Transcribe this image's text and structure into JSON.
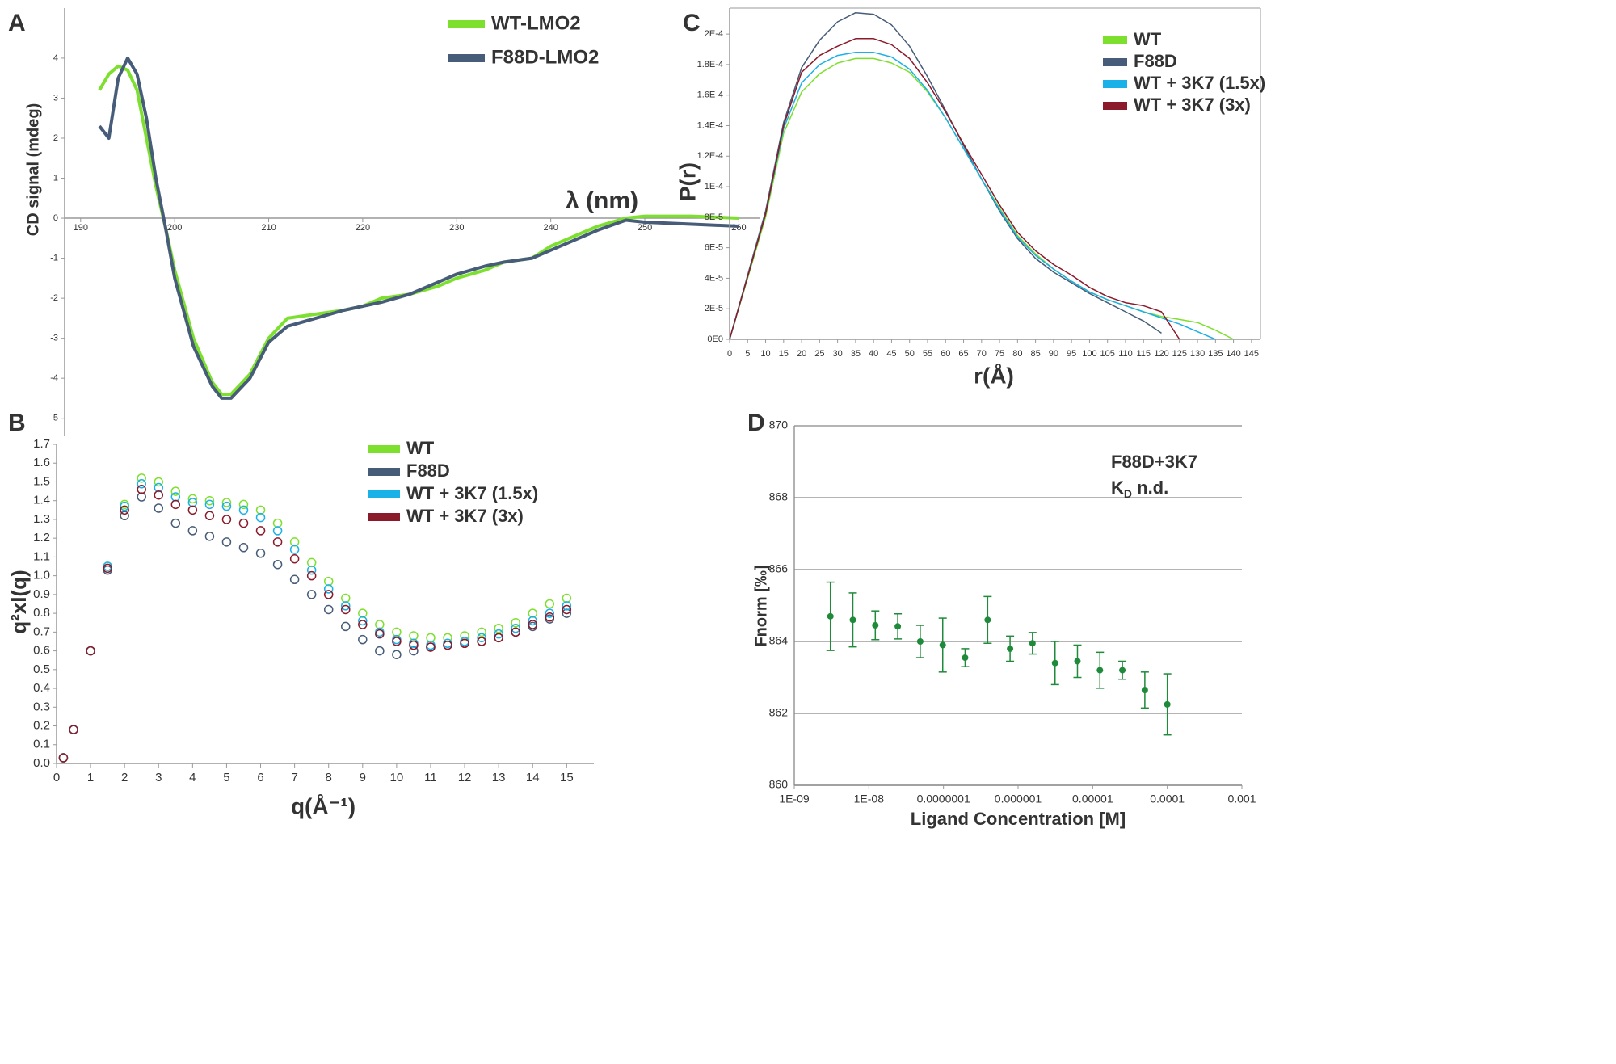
{
  "chart_data": [
    {
      "type": "line",
      "label": "A",
      "xlabel": "λ (nm)",
      "ylabel": "CD signal (mdeg)",
      "x": [
        192,
        193,
        194,
        195,
        196,
        197,
        198,
        199,
        200,
        202,
        204,
        205,
        206,
        208,
        210,
        212,
        215,
        218,
        220,
        222,
        225,
        228,
        230,
        233,
        235,
        238,
        240,
        243,
        245,
        248,
        250,
        255,
        260
      ],
      "series": [
        {
          "name": "WT-LMO2",
          "color": "#7ee02e",
          "values": [
            3.2,
            3.6,
            3.8,
            3.7,
            3.2,
            2.0,
            0.8,
            -0.2,
            -1.3,
            -3.0,
            -4.1,
            -4.4,
            -4.4,
            -3.9,
            -3.0,
            -2.5,
            -2.4,
            -2.3,
            -2.2,
            -2.0,
            -1.9,
            -1.7,
            -1.5,
            -1.3,
            -1.1,
            -1.0,
            -0.7,
            -0.4,
            -0.2,
            0,
            0.05,
            0.05,
            0
          ]
        },
        {
          "name": "F88D-LMO2",
          "color": "#465c78",
          "values": [
            2.3,
            2.0,
            3.5,
            4.0,
            3.6,
            2.5,
            1.0,
            -0.2,
            -1.5,
            -3.2,
            -4.2,
            -4.5,
            -4.5,
            -4.0,
            -3.1,
            -2.7,
            -2.5,
            -2.3,
            -2.2,
            -2.1,
            -1.9,
            -1.6,
            -1.4,
            -1.2,
            -1.1,
            -1.0,
            -0.8,
            -0.5,
            -0.3,
            -0.05,
            -0.1,
            -0.15,
            -0.2
          ]
        }
      ],
      "xlim": [
        188.3,
        262.2
      ],
      "ylim": [
        -5.45,
        5.25
      ],
      "xticks": [
        190,
        200,
        210,
        220,
        230,
        240,
        250,
        260
      ],
      "yticks": [
        -5,
        -4,
        -3,
        -2,
        -1,
        0,
        1,
        2,
        3,
        4
      ],
      "legend": "upper right"
    },
    {
      "type": "scatter",
      "label": "B",
      "xlabel": "q(Å⁻¹)",
      "ylabel": "q²xI(q)",
      "x": [
        0.2,
        0.5,
        1,
        1.5,
        2,
        2.5,
        3,
        3.5,
        4,
        4.5,
        5,
        5.5,
        6,
        6.5,
        7,
        7.5,
        8,
        8.5,
        9,
        9.5,
        10,
        10.5,
        11,
        11.5,
        12,
        12.5,
        13,
        13.5,
        14,
        14.5,
        15
      ],
      "series": [
        {
          "name": "WT",
          "color": "#7ee02e",
          "values": [
            0.03,
            0.18,
            0.6,
            1.05,
            1.38,
            1.52,
            1.5,
            1.45,
            1.41,
            1.4,
            1.39,
            1.38,
            1.35,
            1.28,
            1.18,
            1.07,
            0.97,
            0.88,
            0.8,
            0.74,
            0.7,
            0.68,
            0.67,
            0.67,
            0.68,
            0.7,
            0.72,
            0.75,
            0.8,
            0.85,
            0.88
          ]
        },
        {
          "name": "F88D",
          "color": "#465c78",
          "values": [
            0.03,
            0.18,
            0.6,
            1.03,
            1.32,
            1.42,
            1.36,
            1.28,
            1.24,
            1.21,
            1.18,
            1.15,
            1.12,
            1.06,
            0.98,
            0.9,
            0.82,
            0.73,
            0.66,
            0.6,
            0.58,
            0.6,
            0.62,
            0.63,
            0.64,
            0.65,
            0.67,
            0.7,
            0.73,
            0.77,
            0.8
          ]
        },
        {
          "name": "WT + 3K7 (1.5x)",
          "color": "#1ab0e8",
          "values": [
            0.03,
            0.18,
            0.6,
            1.05,
            1.37,
            1.49,
            1.47,
            1.42,
            1.39,
            1.38,
            1.37,
            1.35,
            1.31,
            1.24,
            1.14,
            1.03,
            0.93,
            0.84,
            0.76,
            0.7,
            0.66,
            0.64,
            0.63,
            0.64,
            0.65,
            0.67,
            0.69,
            0.72,
            0.76,
            0.8,
            0.84
          ]
        },
        {
          "name": "WT + 3K7 (3x)",
          "color": "#8b1a2a",
          "values": [
            0.03,
            0.18,
            0.6,
            1.04,
            1.35,
            1.46,
            1.43,
            1.38,
            1.35,
            1.32,
            1.3,
            1.28,
            1.24,
            1.18,
            1.09,
            1.0,
            0.9,
            0.82,
            0.74,
            0.69,
            0.65,
            0.63,
            0.62,
            0.63,
            0.64,
            0.65,
            0.67,
            0.7,
            0.74,
            0.78,
            0.82
          ]
        }
      ],
      "xlim": [
        0,
        15.8
      ],
      "ylim": [
        0,
        1.7
      ],
      "xticks": [
        0,
        1,
        2,
        3,
        4,
        5,
        6,
        7,
        8,
        9,
        10,
        11,
        12,
        13,
        14,
        15
      ],
      "yticks": [
        {
          "value": 0,
          "label": "0.0"
        },
        0.1,
        0.2,
        0.3,
        0.4,
        0.5,
        0.6,
        0.7,
        0.8,
        0.9,
        {
          "value": 1,
          "label": "1.0"
        },
        1.1,
        1.2,
        1.3,
        1.4,
        1.5,
        1.6,
        1.7
      ],
      "legend": "upper right"
    },
    {
      "type": "line",
      "label": "C",
      "xlabel": "r(Å)",
      "ylabel": "P(r)",
      "x": [
        0,
        5,
        10,
        15,
        20,
        25,
        30,
        35,
        40,
        45,
        50,
        55,
        60,
        65,
        70,
        75,
        80,
        85,
        90,
        95,
        100,
        105,
        110,
        115,
        120,
        125,
        130,
        135,
        140
      ],
      "series": [
        {
          "name": "WT",
          "color": "#7ee02e",
          "values": [
            0,
            4e-05,
            8e-05,
            0.000135,
            0.000162,
            0.000174,
            0.000181,
            0.000184,
            0.000184,
            0.000181,
            0.000175,
            0.000162,
            0.000145,
            0.000125,
            0.000105,
            8.6e-05,
            6.8e-05,
            5.6e-05,
            4.6e-05,
            3.8e-05,
            3.1e-05,
            2.6e-05,
            2.2e-05,
            1.8e-05,
            1.5e-05,
            1.3e-05,
            1.1e-05,
            6e-06,
            0
          ]
        },
        {
          "name": "F88D",
          "color": "#465c78",
          "values": [
            0,
            4.2e-05,
            8.4e-05,
            0.000142,
            0.000178,
            0.000196,
            0.000208,
            0.000214,
            0.000213,
            0.000206,
            0.000192,
            0.000172,
            0.00015,
            0.000127,
            0.000105,
            8.4e-05,
            6.6e-05,
            5.3e-05,
            4.4e-05,
            3.7e-05,
            3e-05,
            2.4e-05,
            1.8e-05,
            1.2e-05,
            4e-06,
            null,
            null,
            null,
            null
          ]
        },
        {
          "name": "WT + 3K7 (1.5x)",
          "color": "#1ab0e8",
          "values": [
            0,
            4.1e-05,
            8.2e-05,
            0.000138,
            0.000168,
            0.00018,
            0.000186,
            0.000188,
            0.000188,
            0.000185,
            0.000177,
            0.000163,
            0.000145,
            0.000125,
            0.000105,
            8.5e-05,
            6.7e-05,
            5.5e-05,
            4.6e-05,
            3.8e-05,
            3.1e-05,
            2.6e-05,
            2.2e-05,
            1.8e-05,
            1.4e-05,
            1e-05,
            5e-06,
            0,
            null
          ]
        },
        {
          "name": "WT + 3K7 (3x)",
          "color": "#8b1a2a",
          "values": [
            0,
            4.1e-05,
            8.2e-05,
            0.00014,
            0.000175,
            0.000186,
            0.000192,
            0.000197,
            0.000197,
            0.000193,
            0.000184,
            0.000168,
            0.000149,
            0.000128,
            0.000108,
            8.8e-05,
            7e-05,
            5.8e-05,
            4.9e-05,
            4.2e-05,
            3.4e-05,
            2.8e-05,
            2.4e-05,
            2.2e-05,
            1.8e-05,
            0,
            null,
            null,
            null
          ]
        }
      ],
      "xlim": [
        0,
        147.5
      ],
      "ylim": [
        0,
        0.000217
      ],
      "xticks": [
        0,
        5,
        10,
        15,
        20,
        25,
        30,
        35,
        40,
        45,
        50,
        55,
        60,
        65,
        70,
        75,
        80,
        85,
        90,
        95,
        100,
        105,
        110,
        115,
        120,
        125,
        130,
        135,
        140,
        145
      ],
      "yticks": [
        {
          "value": 0,
          "label": "0E0"
        },
        {
          "value": 2e-05,
          "label": "2E-5"
        },
        {
          "value": 4e-05,
          "label": "4E-5"
        },
        {
          "value": 6e-05,
          "label": "6E-5"
        },
        {
          "value": 8e-05,
          "label": "8E-5"
        },
        {
          "value": 0.0001,
          "label": "1E-4"
        },
        {
          "value": 0.00012,
          "label": "1.2E-4"
        },
        {
          "value": 0.00014,
          "label": "1.4E-4"
        },
        {
          "value": 0.00016,
          "label": "1.6E-4"
        },
        {
          "value": 0.00018,
          "label": "1.8E-4"
        },
        {
          "value": 0.0002,
          "label": "2E-4"
        }
      ],
      "legend": "upper right"
    },
    {
      "type": "errorbar",
      "label": "D",
      "xlabel": "Ligand Concentration [M]",
      "ylabel": "Fnorm [‰]",
      "annotation": "F88D+3K7",
      "kd": {
        "main": "K",
        "sub": "D",
        "tail": " n.d."
      },
      "color": "#1e8a3a",
      "log_x": true,
      "grid": true,
      "x": [
        3.05e-09,
        6.1e-09,
        1.22e-08,
        2.44e-08,
        4.88e-08,
        9.77e-08,
        1.95e-07,
        3.91e-07,
        7.81e-07,
        1.56e-06,
        3.13e-06,
        6.25e-06,
        1.25e-05,
        2.5e-05,
        5e-05,
        0.0001
      ],
      "values": [
        864.7,
        864.6,
        864.45,
        864.42,
        864.0,
        863.9,
        863.55,
        864.6,
        863.8,
        863.95,
        863.4,
        863.45,
        863.2,
        863.2,
        862.65,
        862.25
      ],
      "errors": [
        0.95,
        0.75,
        0.4,
        0.35,
        0.45,
        0.75,
        0.25,
        0.65,
        0.35,
        0.3,
        0.6,
        0.45,
        0.5,
        0.25,
        0.5,
        0.85
      ],
      "xlim": [
        1e-09,
        0.001
      ],
      "ylim": [
        860,
        870
      ],
      "xticks": [
        {
          "value": 1e-09,
          "label": "1E-09"
        },
        {
          "value": 1e-08,
          "label": "1E-08"
        },
        {
          "value": 1e-07,
          "label": "0.0000001"
        },
        1e-06,
        1e-05,
        0.0001,
        0.001
      ],
      "yticks": [
        860,
        862,
        864,
        866,
        868,
        870
      ]
    }
  ]
}
